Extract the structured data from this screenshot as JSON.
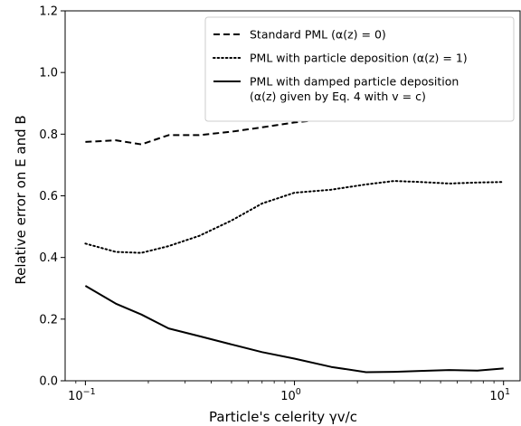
{
  "chart_data": {
    "type": "line",
    "xlabel": "Particle's celerity γv/c",
    "ylabel": "Relative error on E and B",
    "xscale": "log",
    "xlim": [
      0.08,
      12
    ],
    "ylim": [
      0.0,
      1.2
    ],
    "xticks": [
      {
        "value": 0.1,
        "base": "10",
        "exp": "−1"
      },
      {
        "value": 1,
        "base": "10",
        "exp": "0"
      },
      {
        "value": 10,
        "base": "10",
        "exp": "1"
      }
    ],
    "yticks": [
      0.0,
      0.2,
      0.4,
      0.6,
      0.8,
      1.0,
      1.2
    ],
    "ytick_labels": [
      "0.0",
      "0.2",
      "0.4",
      "0.6",
      "0.8",
      "1.0",
      "1.2"
    ],
    "grid": false,
    "legend_position": "top-right",
    "series": [
      {
        "name": "Standard PML (α(z) = 0)",
        "line_style": "dashed",
        "color": "#000000",
        "x": [
          0.1,
          0.14,
          0.185,
          0.25,
          0.35,
          0.5,
          0.7,
          1.0,
          1.5,
          2.2,
          3.0,
          4.0,
          5.5,
          7.5,
          10.0
        ],
        "y": [
          0.775,
          0.78,
          0.767,
          0.797,
          0.797,
          0.808,
          0.822,
          0.838,
          0.85,
          0.857,
          0.86,
          0.862,
          0.862,
          0.863,
          0.864
        ]
      },
      {
        "name": "PML with particle deposition (α(z) = 1)",
        "line_style": "dotted",
        "color": "#000000",
        "x": [
          0.1,
          0.14,
          0.185,
          0.25,
          0.35,
          0.5,
          0.7,
          1.0,
          1.5,
          2.2,
          3.0,
          4.0,
          5.5,
          7.5,
          10.0
        ],
        "y": [
          0.445,
          0.418,
          0.415,
          0.437,
          0.47,
          0.52,
          0.575,
          0.61,
          0.62,
          0.637,
          0.648,
          0.645,
          0.64,
          0.643,
          0.645
        ]
      },
      {
        "name": "PML with damped particle deposition",
        "name_line2": "(α(z) given by Eq. 4 with v = c)",
        "line_style": "solid",
        "color": "#000000",
        "x": [
          0.1,
          0.14,
          0.185,
          0.25,
          0.35,
          0.5,
          0.7,
          1.0,
          1.5,
          2.2,
          3.0,
          4.0,
          5.5,
          7.5,
          10.0
        ],
        "y": [
          0.308,
          0.25,
          0.215,
          0.17,
          0.145,
          0.118,
          0.093,
          0.072,
          0.045,
          0.028,
          0.029,
          0.032,
          0.035,
          0.033,
          0.04
        ]
      }
    ]
  }
}
